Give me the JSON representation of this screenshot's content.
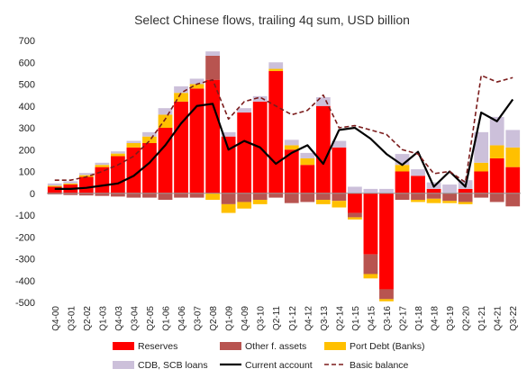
{
  "chart_data": {
    "type": "bar",
    "title": "Select Chinese flows, trailing 4q sum, USD billion",
    "xlabel": "",
    "ylabel": "",
    "ylim": [
      -500,
      700
    ],
    "yticks": [
      700,
      600,
      500,
      400,
      300,
      200,
      100,
      0,
      -100,
      -200,
      -300,
      -400,
      -500
    ],
    "grid": false,
    "legend_position": "bottom",
    "categories": [
      "Q4-00",
      "Q3-01",
      "Q2-02",
      "Q1-03",
      "Q4-03",
      "Q3-04",
      "Q2-05",
      "Q1-06",
      "Q4-06",
      "Q3-07",
      "Q2-08",
      "Q1-09",
      "Q4-09",
      "Q3-10",
      "Q2-11",
      "Q1-12",
      "Q4-12",
      "Q3-13",
      "Q2-14",
      "Q1-15",
      "Q4-15",
      "Q3-16",
      "Q2-17",
      "Q1-18",
      "Q4-18",
      "Q3-19",
      "Q2-20",
      "Q1-21",
      "Q4-21",
      "Q3-22"
    ],
    "stack_series": [
      {
        "name": "Reserves",
        "color": "#ff0000",
        "values": [
          30,
          40,
          75,
          120,
          170,
          210,
          230,
          300,
          420,
          480,
          520,
          260,
          370,
          420,
          560,
          200,
          130,
          400,
          210,
          -90,
          -280,
          -440,
          100,
          80,
          20,
          0,
          20,
          100,
          160,
          120
        ]
      },
      {
        "name": "Other f. assets",
        "color": "#b85450",
        "values": [
          -5,
          -8,
          -10,
          -12,
          -15,
          -20,
          -20,
          -30,
          -20,
          -20,
          110,
          -50,
          -40,
          -30,
          -20,
          -45,
          -40,
          -30,
          -35,
          -20,
          -90,
          -45,
          -30,
          -30,
          -25,
          -35,
          -40,
          -20,
          -40,
          -60
        ]
      },
      {
        "name": "Port Debt (Banks)",
        "color": "#ffc000",
        "values": [
          5,
          5,
          8,
          10,
          12,
          20,
          30,
          60,
          40,
          20,
          -30,
          -40,
          -30,
          -20,
          10,
          20,
          30,
          -20,
          -30,
          -10,
          -20,
          -10,
          30,
          -10,
          -20,
          -10,
          -10,
          40,
          60,
          90
        ]
      },
      {
        "name": "CDB, SCB loans",
        "color": "#ccc0da",
        "values": [
          10,
          10,
          10,
          10,
          10,
          10,
          20,
          30,
          30,
          25,
          20,
          20,
          20,
          25,
          30,
          25,
          25,
          40,
          30,
          30,
          20,
          20,
          50,
          30,
          30,
          40,
          40,
          140,
          130,
          80
        ]
      }
    ],
    "line_series": [
      {
        "name": "Current account",
        "color": "#000000",
        "style": "solid",
        "values": [
          20,
          20,
          25,
          35,
          45,
          80,
          140,
          220,
          320,
          400,
          410,
          200,
          240,
          210,
          135,
          185,
          220,
          135,
          290,
          300,
          250,
          180,
          130,
          190,
          30,
          100,
          30,
          370,
          330,
          430
        ]
      },
      {
        "name": "Basic balance",
        "color": "#7b1c1c",
        "style": "dashed",
        "values": [
          60,
          60,
          75,
          100,
          130,
          170,
          240,
          340,
          460,
          500,
          520,
          340,
          420,
          440,
          400,
          360,
          380,
          450,
          300,
          310,
          290,
          270,
          200,
          180,
          90,
          100,
          50,
          540,
          510,
          530
        ]
      }
    ],
    "legend": [
      {
        "label": "Reserves",
        "kind": "swatch",
        "color": "#ff0000"
      },
      {
        "label": "Other f. assets",
        "kind": "swatch",
        "color": "#b85450"
      },
      {
        "label": "Port Debt (Banks)",
        "kind": "swatch",
        "color": "#ffc000"
      },
      {
        "label": "CDB, SCB loans",
        "kind": "swatch",
        "color": "#ccc0da"
      },
      {
        "label": "Current account",
        "kind": "line",
        "color": "#000000"
      },
      {
        "label": "Basic balance",
        "kind": "dash",
        "color": "#7b1c1c"
      }
    ]
  }
}
